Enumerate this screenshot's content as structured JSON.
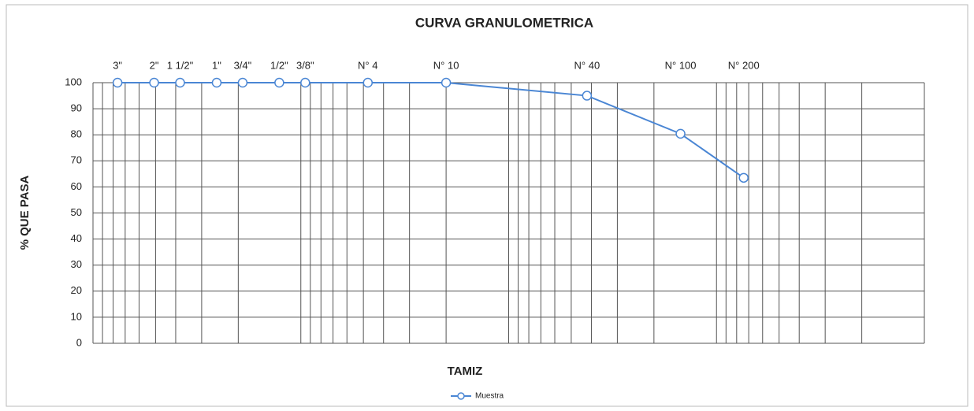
{
  "chart_data": {
    "type": "line",
    "title": "CURVA GRANULOMETRICA",
    "x_label": "TAMIZ",
    "y_label": "% QUE PASA",
    "x_labels": [
      "3\"",
      "2\"",
      "1 1/2\"",
      "1\"",
      "3/4\"",
      "1/2\"",
      "3/8\"",
      "N° 4",
      "N° 10",
      "N° 40",
      "N° 100",
      "N° 200"
    ],
    "x": [
      76.2,
      50.8,
      38.1,
      25.4,
      19.05,
      12.7,
      9.525,
      4.76,
      2.0,
      0.42,
      0.149,
      0.074
    ],
    "series": [
      {
        "name": "Muestra",
        "color": "#4a86d4",
        "values": [
          100,
          100,
          100,
          100,
          100,
          100,
          100,
          100,
          100,
          95,
          80.4,
          63.5
        ]
      }
    ],
    "xlim": [
      100,
      0.01
    ],
    "x_log": true,
    "xticks": [
      100,
      90,
      80,
      70,
      60,
      50,
      40,
      30,
      20,
      10,
      9,
      8,
      7,
      6,
      5,
      4,
      3,
      2,
      1,
      0.9,
      0.8,
      0.7,
      0.6,
      0.5,
      0.4,
      0.3,
      0.2,
      0.1,
      0.09,
      0.08,
      0.07,
      0.06,
      0.05,
      0.04,
      0.03,
      0.02,
      0.01
    ],
    "ylim": [
      0,
      100
    ],
    "yticks": [
      0,
      10,
      20,
      30,
      40,
      50,
      60,
      70,
      80,
      90,
      100
    ],
    "grid": true
  }
}
